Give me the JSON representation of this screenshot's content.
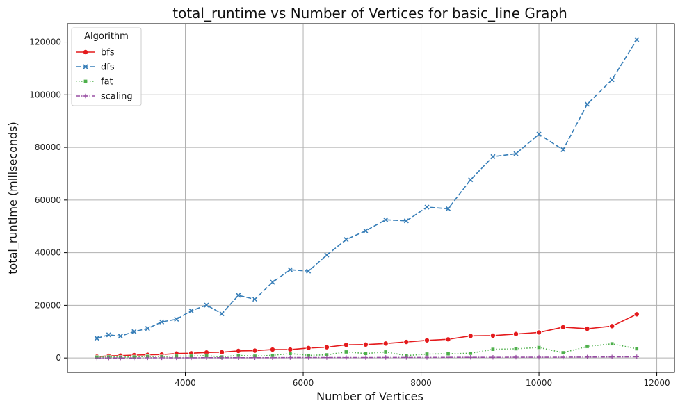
{
  "chart_data": {
    "type": "line",
    "title": "total_runtime vs Number of Vertices for basic_line Graph",
    "xlabel": "Number of Vertices",
    "ylabel": "total_runtime (miliseconds)",
    "xlim": [
      2000,
      12300
    ],
    "ylim": [
      -5500,
      127000
    ],
    "xticks": [
      4000,
      6000,
      8000,
      10000,
      12000
    ],
    "yticks": [
      0,
      20000,
      40000,
      60000,
      80000,
      100000,
      120000
    ],
    "grid": true,
    "legend": {
      "title": "Algorithm",
      "placement": "top-left"
    },
    "x": [
      2500,
      2700,
      2900,
      3130,
      3360,
      3600,
      3850,
      4100,
      4360,
      4620,
      4900,
      5180,
      5480,
      5780,
      6090,
      6400,
      6730,
      7060,
      7400,
      7750,
      8100,
      8460,
      8840,
      9220,
      9610,
      10000,
      10410,
      10820,
      11240,
      11660
    ],
    "series": [
      {
        "name": "bfs",
        "color": "#e41a1c",
        "marker": "circle",
        "dash": "solid",
        "values": [
          500,
          800,
          900,
          1100,
          1200,
          1300,
          1700,
          1800,
          2100,
          2200,
          2700,
          2800,
          3200,
          3200,
          3800,
          4100,
          5000,
          5100,
          5500,
          6100,
          6700,
          7100,
          8400,
          8500,
          9100,
          9700,
          11700,
          11100,
          12100,
          16600
        ]
      },
      {
        "name": "dfs",
        "color": "#377eb8",
        "marker": "x",
        "dash": "dashed",
        "values": [
          7500,
          8800,
          8300,
          10000,
          11200,
          13700,
          14700,
          17900,
          20100,
          16800,
          23800,
          22300,
          28800,
          33500,
          33000,
          39100,
          45000,
          48300,
          52500,
          52100,
          57300,
          56700,
          67700,
          76500,
          77600,
          85000,
          79100,
          96400,
          105700,
          120900
        ]
      },
      {
        "name": "fat",
        "color": "#4daf4a",
        "marker": "square",
        "dash": "dotted",
        "values": [
          300,
          400,
          300,
          400,
          600,
          500,
          700,
          700,
          900,
          400,
          1000,
          700,
          1000,
          1700,
          1000,
          1200,
          2300,
          1700,
          2300,
          900,
          1500,
          1600,
          1800,
          3300,
          3500,
          4000,
          2000,
          4400,
          5400,
          3500
        ]
      },
      {
        "name": "scaling",
        "color": "#984ea3",
        "marker": "plus",
        "dash": "dashdot",
        "values": [
          0,
          0,
          0,
          0,
          50,
          50,
          50,
          50,
          100,
          100,
          100,
          100,
          100,
          150,
          150,
          150,
          150,
          150,
          200,
          200,
          200,
          250,
          250,
          250,
          300,
          300,
          300,
          350,
          400,
          450
        ]
      }
    ]
  }
}
